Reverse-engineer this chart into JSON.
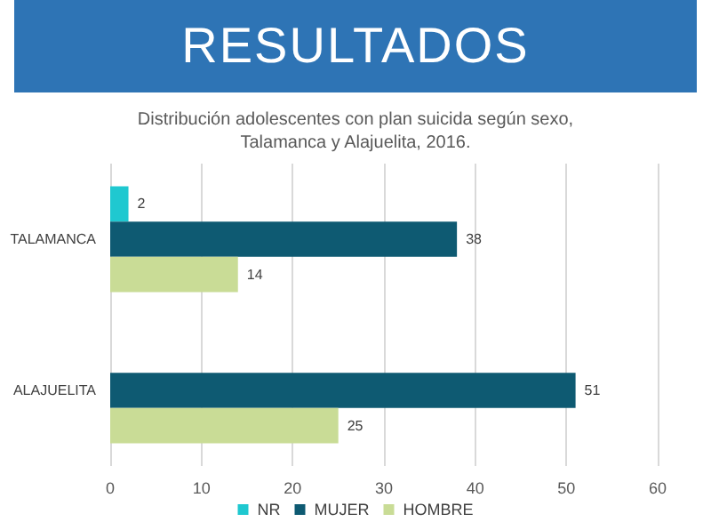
{
  "chart_data": {
    "type": "bar",
    "orientation": "horizontal",
    "title": "RESULTADOS",
    "subtitle": "Distribución adolescentes con plan suicida según sexo,\nTalamanca y Alajuelita, 2016.",
    "categories": [
      "TALAMANCA",
      "ALAJUELITA"
    ],
    "series": [
      {
        "name": "NR",
        "color": "#1fc8d0",
        "values": [
          2,
          null
        ]
      },
      {
        "name": "MUJER",
        "color": "#0e5a72",
        "values": [
          38,
          51
        ]
      },
      {
        "name": "HOMBRE",
        "color": "#c9dc96",
        "values": [
          14,
          25
        ]
      }
    ],
    "xlim": [
      0,
      60
    ],
    "xticks": [
      0,
      10,
      20,
      30,
      40,
      50,
      60
    ],
    "grid": "x",
    "legend": "bottom",
    "data_labels": true
  }
}
